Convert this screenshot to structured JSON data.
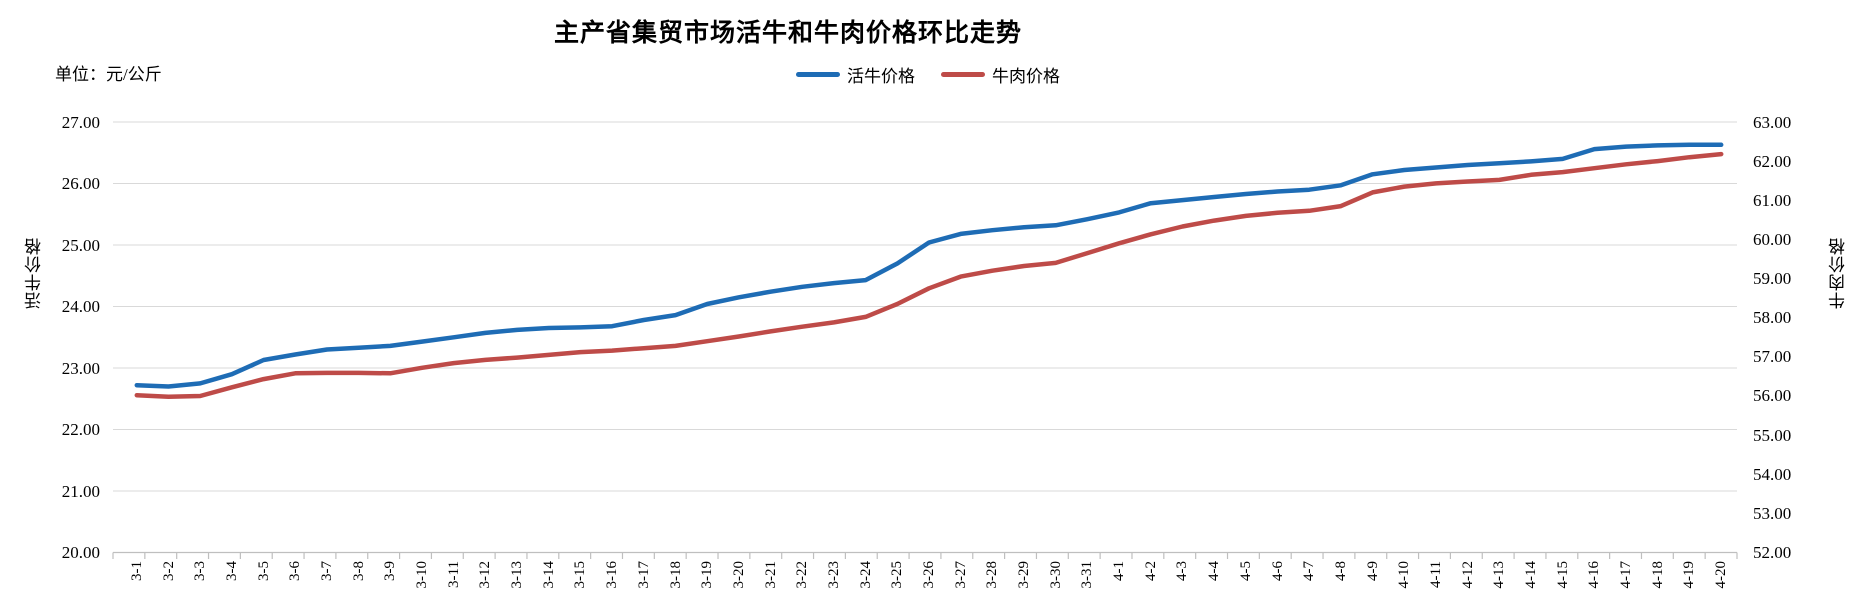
{
  "title": "主产省集贸市场活牛和牛肉价格环比走势",
  "unit_label": "单位：元/公斤",
  "legend": [
    {
      "label": "活牛价格",
      "color": "#1E6CB5"
    },
    {
      "label": "牛肉价格",
      "color": "#BE4B48"
    }
  ],
  "colors": {
    "live_cattle": "#1E6CB5",
    "beef": "#BE4B48",
    "gridline": "#D9D9D9",
    "axis": "#BFBFBF",
    "text": "#000000"
  },
  "chart_data": {
    "type": "line",
    "title": "主产省集贸市场活牛和牛肉价格环比走势",
    "unit": "元/公斤",
    "grid": true,
    "legend_position": "top",
    "categories": [
      "3-1",
      "3-2",
      "3-3",
      "3-4",
      "3-5",
      "3-6",
      "3-7",
      "3-8",
      "3-9",
      "3-10",
      "3-11",
      "3-12",
      "3-13",
      "3-14",
      "3-15",
      "3-16",
      "3-17",
      "3-18",
      "3-19",
      "3-20",
      "3-21",
      "3-22",
      "3-23",
      "3-24",
      "3-25",
      "3-26",
      "3-27",
      "3-28",
      "3-29",
      "3-30",
      "3-31",
      "4-1",
      "4-2",
      "4-3",
      "4-4",
      "4-5",
      "4-6",
      "4-7",
      "4-8",
      "4-9",
      "4-10",
      "4-11",
      "4-12",
      "4-13",
      "4-14",
      "4-15",
      "4-16",
      "4-17",
      "4-18",
      "4-19",
      "4-20"
    ],
    "series": [
      {
        "name": "活牛价格",
        "axis": "left",
        "color": "#1E6CB5",
        "values": [
          22.72,
          22.7,
          22.75,
          22.9,
          23.13,
          23.22,
          23.3,
          23.33,
          23.36,
          23.43,
          23.5,
          23.57,
          23.62,
          23.65,
          23.66,
          23.68,
          23.78,
          23.86,
          24.04,
          24.15,
          24.24,
          24.32,
          24.38,
          24.43,
          24.7,
          25.04,
          25.18,
          25.24,
          25.29,
          25.32,
          25.42,
          25.53,
          25.68,
          25.73,
          25.78,
          25.83,
          25.87,
          25.9,
          25.97,
          26.15,
          26.22,
          26.26,
          26.3,
          26.33,
          26.36,
          26.4,
          26.56,
          26.6,
          26.62,
          26.63,
          26.63
        ]
      },
      {
        "name": "牛肉价格",
        "axis": "right",
        "color": "#BE4B48",
        "values": [
          56.02,
          55.98,
          56.0,
          56.22,
          56.43,
          56.58,
          56.59,
          56.59,
          56.58,
          56.72,
          56.84,
          56.92,
          56.98,
          57.05,
          57.12,
          57.16,
          57.22,
          57.28,
          57.4,
          57.52,
          57.65,
          57.77,
          57.88,
          58.02,
          58.35,
          58.75,
          59.05,
          59.2,
          59.32,
          59.4,
          59.65,
          59.9,
          60.13,
          60.33,
          60.48,
          60.6,
          60.68,
          60.73,
          60.85,
          61.2,
          61.35,
          61.43,
          61.48,
          61.52,
          61.65,
          61.72,
          61.82,
          61.92,
          62.0,
          62.1,
          62.18
        ]
      }
    ],
    "left_axis": {
      "title": "活牛价格",
      "min": 20,
      "max": 27,
      "step": 1,
      "tick_labels": [
        "27.00",
        "26.00",
        "25.00",
        "24.00",
        "23.00",
        "22.00",
        "21.00",
        "20.00"
      ]
    },
    "right_axis": {
      "title": "牛肉价格",
      "min": 52,
      "max": 63,
      "step": 1,
      "tick_labels": [
        "63.00",
        "62.00",
        "61.00",
        "60.00",
        "59.00",
        "58.00",
        "57.00",
        "56.00",
        "55.00",
        "54.00",
        "53.00",
        "52.00"
      ]
    }
  }
}
